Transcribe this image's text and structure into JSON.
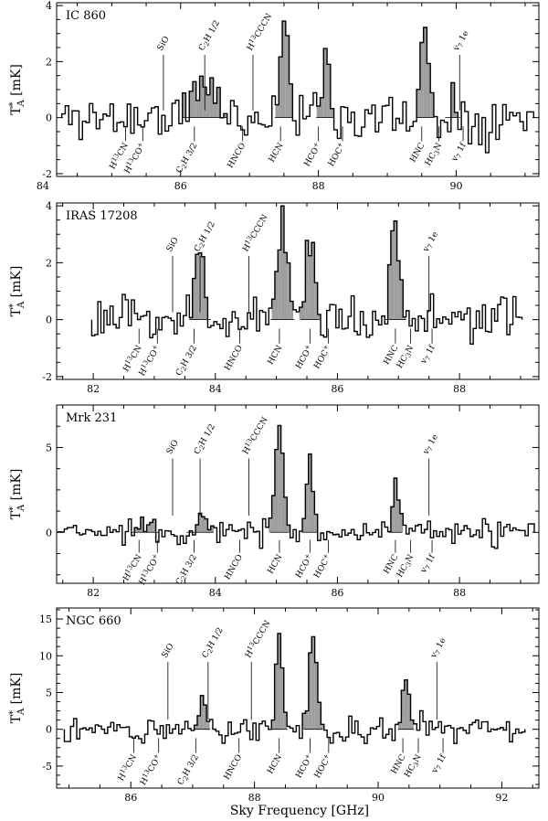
{
  "figure": {
    "xlabel": "Sky Frequency [GHz]"
  },
  "chart_data": [
    {
      "type": "line",
      "title": "IC 860",
      "ylabel": "T*A [mK]",
      "xlim": [
        84.2,
        91.2
      ],
      "ylim": [
        -2.1,
        4.1
      ],
      "xticks": [
        84,
        86,
        88,
        90
      ],
      "yticks": [
        -2,
        0,
        2,
        4
      ],
      "spectrum": {
        "x_start": 84.3,
        "x_end": 91.1,
        "step": 0.05,
        "noise": 0.55,
        "seed": 11,
        "peaks": [
          {
            "x": 86.35,
            "amp": 1.3,
            "width": 0.15
          },
          {
            "x": 87.5,
            "amp": 3.6,
            "width": 0.06
          },
          {
            "x": 88.1,
            "amp": 2.4,
            "width": 0.06
          },
          {
            "x": 89.55,
            "amp": 3.0,
            "width": 0.06
          },
          {
            "x": 89.95,
            "amp": 0.6,
            "width": 0.05
          }
        ]
      },
      "labels_above": [
        {
          "text": "SiO",
          "x": 85.75
        },
        {
          "text": "C2H 1/2",
          "x": 86.35
        },
        {
          "text": "H13CCCN",
          "x": 87.05
        },
        {
          "text": "v7 1e",
          "x": 90.05
        }
      ],
      "labels_below": [
        {
          "text": "H13CN",
          "x": 85.2
        },
        {
          "text": "H13CO+",
          "x": 85.45
        },
        {
          "text": "C2H 3/2",
          "x": 86.2
        },
        {
          "text": "HNCO",
          "x": 86.9
        },
        {
          "text": "HCN",
          "x": 87.45
        },
        {
          "text": "HCO+",
          "x": 88.0
        },
        {
          "text": "HOC+",
          "x": 88.35
        },
        {
          "text": "HNC",
          "x": 89.5
        },
        {
          "text": "HC3N",
          "x": 89.75
        },
        {
          "text": "v7 1f",
          "x": 90.1
        }
      ]
    },
    {
      "type": "line",
      "title": "IRAS 17208",
      "ylabel": "T*A [mK]",
      "xlim": [
        81.4,
        89.3
      ],
      "ylim": [
        -2.1,
        4.1
      ],
      "xticks": [
        82,
        84,
        86,
        88
      ],
      "yticks": [
        -2,
        0,
        2,
        4
      ],
      "spectrum": {
        "x_start": 82.0,
        "x_end": 89.0,
        "step": 0.05,
        "noise": 0.5,
        "seed": 23,
        "peaks": [
          {
            "x": 83.75,
            "amp": 2.3,
            "width": 0.08
          },
          {
            "x": 85.1,
            "amp": 3.5,
            "width": 0.09
          },
          {
            "x": 85.55,
            "amp": 3.0,
            "width": 0.07
          },
          {
            "x": 86.95,
            "amp": 3.4,
            "width": 0.08
          }
        ]
      },
      "labels_above": [
        {
          "text": "SiO",
          "x": 83.3
        },
        {
          "text": "C2H 1/2",
          "x": 83.75
        },
        {
          "text": "H13CCCN",
          "x": 84.55
        },
        {
          "text": "v7 1e",
          "x": 87.5
        }
      ],
      "labels_below": [
        {
          "text": "H13CN",
          "x": 82.75
        },
        {
          "text": "H13CO+",
          "x": 83.05
        },
        {
          "text": "C2H 3/2",
          "x": 83.65
        },
        {
          "text": "HNCO",
          "x": 84.4
        },
        {
          "text": "HCN",
          "x": 85.05
        },
        {
          "text": "HCO+",
          "x": 85.55
        },
        {
          "text": "HOC+",
          "x": 85.85
        },
        {
          "text": "HNC",
          "x": 86.95
        },
        {
          "text": "HC3N",
          "x": 87.2
        },
        {
          "text": "v7 1f",
          "x": 87.55
        }
      ]
    },
    {
      "type": "line",
      "title": "Mrk 231",
      "ylabel": "T*A [mK]",
      "xlim": [
        81.4,
        89.3
      ],
      "ylim": [
        -3.0,
        7.5
      ],
      "xticks": [
        82,
        84,
        86,
        88
      ],
      "yticks": [
        0,
        5
      ],
      "spectrum": {
        "x_start": 81.45,
        "x_end": 89.2,
        "step": 0.05,
        "noise": 0.45,
        "seed": 37,
        "peaks": [
          {
            "x": 82.85,
            "amp": 0.9,
            "width": 0.1
          },
          {
            "x": 83.75,
            "amp": 0.7,
            "width": 0.1
          },
          {
            "x": 85.05,
            "amp": 6.0,
            "width": 0.07
          },
          {
            "x": 85.55,
            "amp": 4.2,
            "width": 0.06
          },
          {
            "x": 86.95,
            "amp": 2.6,
            "width": 0.05
          }
        ]
      },
      "labels_above": [
        {
          "text": "SiO",
          "x": 83.3
        },
        {
          "text": "C2H 1/2",
          "x": 83.75
        },
        {
          "text": "H13CCCN",
          "x": 84.55
        },
        {
          "text": "v7 1e",
          "x": 87.5
        }
      ],
      "labels_below": [
        {
          "text": "H13CN",
          "x": 82.75
        },
        {
          "text": "H13CO+",
          "x": 83.05
        },
        {
          "text": "C2H 3/2",
          "x": 83.65
        },
        {
          "text": "HNCO",
          "x": 84.4
        },
        {
          "text": "HCN",
          "x": 85.05
        },
        {
          "text": "HCO+",
          "x": 85.55
        },
        {
          "text": "HOC+",
          "x": 85.85
        },
        {
          "text": "HNC",
          "x": 86.95
        },
        {
          "text": "HC3N",
          "x": 87.2
        },
        {
          "text": "v7 1f",
          "x": 87.55
        }
      ]
    },
    {
      "type": "line",
      "title": "NGC 660",
      "ylabel": "T*A [mK]",
      "xlim": [
        84.8,
        92.6
      ],
      "ylim": [
        -8.0,
        16.5
      ],
      "xticks": [
        86,
        88,
        90,
        92
      ],
      "yticks": [
        -5,
        0,
        5,
        10,
        15
      ],
      "spectrum": {
        "x_start": 84.95,
        "x_end": 92.35,
        "step": 0.05,
        "noise": 1.2,
        "seed": 51,
        "peaks": [
          {
            "x": 87.15,
            "amp": 3.5,
            "width": 0.06
          },
          {
            "x": 88.4,
            "amp": 13.5,
            "width": 0.06
          },
          {
            "x": 88.95,
            "amp": 12.0,
            "width": 0.07
          },
          {
            "x": 90.45,
            "amp": 6.0,
            "width": 0.06
          }
        ]
      },
      "labels_above": [
        {
          "text": "SiO",
          "x": 86.6
        },
        {
          "text": "C2H 1/2",
          "x": 87.25
        },
        {
          "text": "H13CCCN",
          "x": 87.95
        },
        {
          "text": "v7 1e",
          "x": 90.95
        }
      ],
      "labels_below": [
        {
          "text": "H13CN",
          "x": 86.05
        },
        {
          "text": "H13CO+",
          "x": 86.45
        },
        {
          "text": "C2H 3/2",
          "x": 87.05
        },
        {
          "text": "HNCO",
          "x": 87.75
        },
        {
          "text": "HCN",
          "x": 88.4
        },
        {
          "text": "HCO+",
          "x": 88.9
        },
        {
          "text": "HOC+",
          "x": 89.2
        },
        {
          "text": "HNC",
          "x": 90.4
        },
        {
          "text": "HC3N",
          "x": 90.65
        },
        {
          "text": "v7 1f",
          "x": 91.05
        }
      ]
    }
  ]
}
